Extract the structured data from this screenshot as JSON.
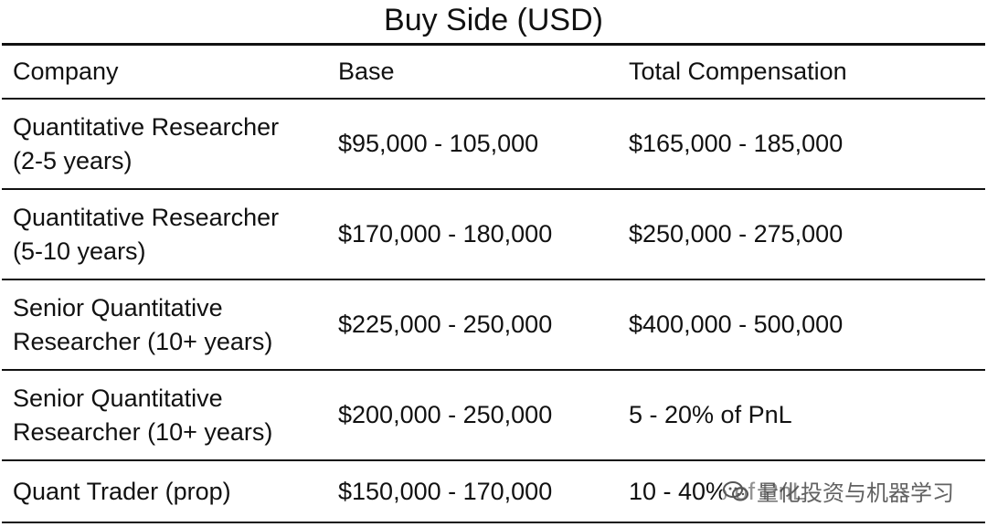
{
  "title": "Buy Side (USD)",
  "table": {
    "headers": [
      "Company",
      "Base",
      "Total Compensation"
    ],
    "rows": [
      [
        "Quantitative Researcher\n(2-5 years)",
        "$95,000 - 105,000",
        "$165,000 - 185,000"
      ],
      [
        "Quantitative Researcher\n(5-10 years)",
        "$170,000 - 180,000",
        "$250,000 - 275,000"
      ],
      [
        "Senior Quantitative\nResearcher (10+ years)",
        "$225,000 - 250,000",
        "$400,000 - 500,000"
      ],
      [
        "Senior Quantitative\nResearcher (10+ years)",
        "$200,000 - 250,000",
        "5 - 20% of PnL"
      ],
      [
        "Quant Trader (prop)",
        "$150,000 - 170,000",
        "10 - 40% of PnL"
      ]
    ]
  },
  "watermark": {
    "text": "量化投资与机器学习",
    "icon": "wechat-icon"
  }
}
